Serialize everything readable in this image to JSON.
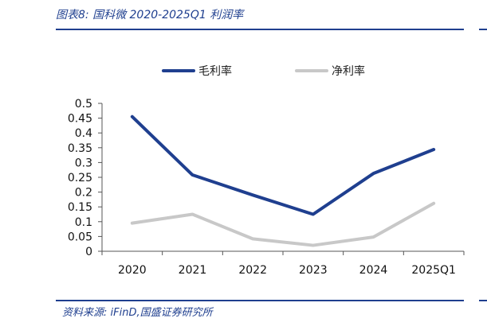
{
  "figure": {
    "title": "图表8:  国科微 2020-2025Q1 利润率",
    "source": "资料来源:  iFinD,国盛证券研究所"
  },
  "chart_data": {
    "type": "line",
    "x": [
      "2020",
      "2021",
      "2022",
      "2023",
      "2024",
      "2025Q1"
    ],
    "series": [
      {
        "name": "毛利率",
        "values": [
          0.455,
          0.258,
          0.19,
          0.125,
          0.263,
          0.344
        ],
        "color": "#1f3f8f"
      },
      {
        "name": "净利率",
        "values": [
          0.095,
          0.125,
          0.042,
          0.02,
          0.048,
          0.162
        ],
        "color": "#c8c8c8"
      }
    ],
    "yticks": [
      "0",
      "0.05",
      "0.1",
      "0.15",
      "0.2",
      "0.25",
      "0.3",
      "0.35",
      "0.4",
      "0.45",
      "0.5"
    ],
    "ylim": [
      0,
      0.5
    ],
    "grid": false,
    "legend": "top-center"
  }
}
